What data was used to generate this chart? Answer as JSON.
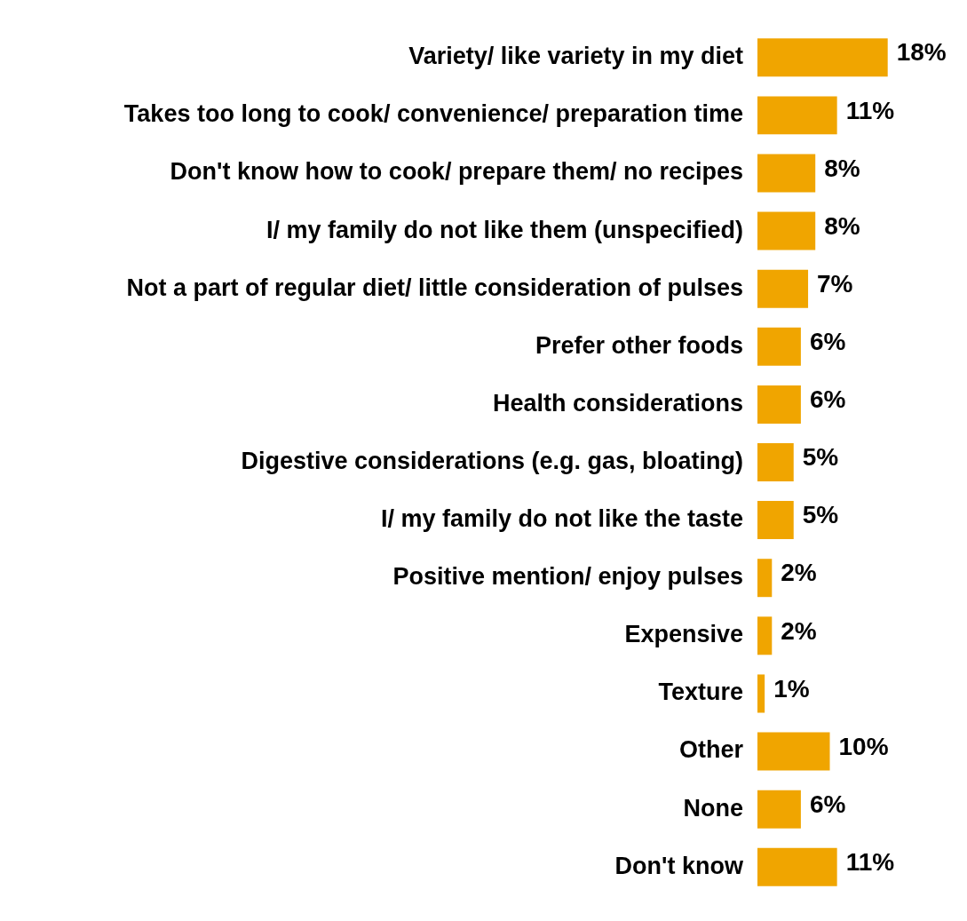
{
  "chart_data": {
    "type": "bar",
    "orientation": "horizontal",
    "categories": [
      "Variety/ like variety in my diet",
      "Takes too long to cook/ convenience/ preparation time",
      "Don't know how to cook/ prepare them/ no recipes",
      "I/ my family do not like them (unspecified)",
      "Not a part of regular diet/ little consideration of pulses",
      "Prefer other foods",
      "Health considerations",
      "Digestive considerations (e.g. gas, bloating)",
      "I/ my family do not like the taste",
      "Positive mention/ enjoy pulses",
      "Expensive",
      "Texture",
      "Other",
      "None",
      "Don't know"
    ],
    "values": [
      18,
      11,
      8,
      8,
      7,
      6,
      6,
      5,
      5,
      2,
      2,
      1,
      10,
      6,
      11
    ],
    "value_labels": [
      "18%",
      "11%",
      "8%",
      "8%",
      "7%",
      "6%",
      "6%",
      "5%",
      "5%",
      "2%",
      "2%",
      "1%",
      "10%",
      "6%",
      "11%"
    ],
    "color": "#f0a500"
  }
}
